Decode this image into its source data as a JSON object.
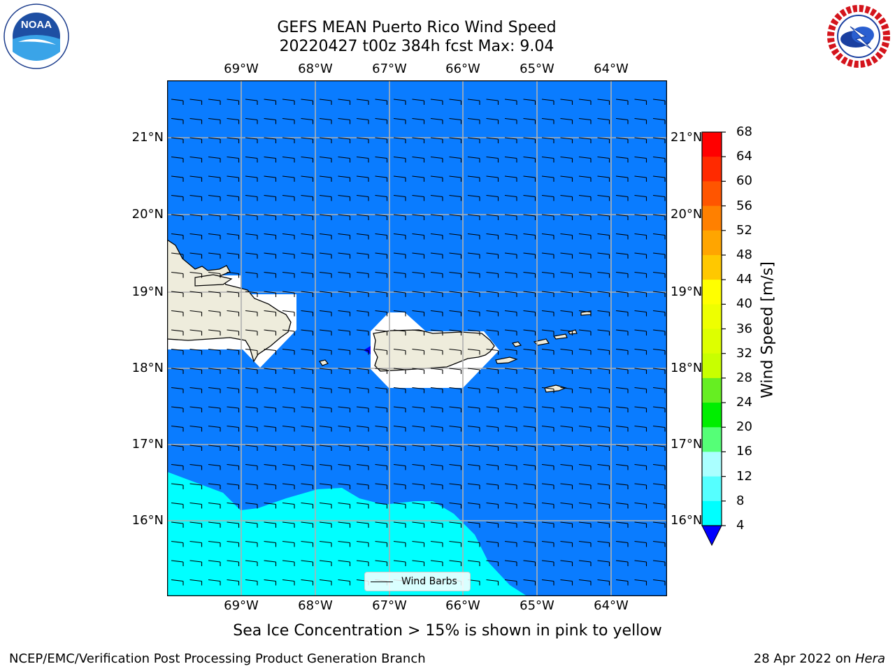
{
  "title": {
    "line1": "GEFS MEAN Puerto Rico Wind Speed",
    "line2": "20220427 t00z 384h fcst   Max: 9.04"
  },
  "map": {
    "lon_labels": [
      "69°W",
      "68°W",
      "67°W",
      "66°W",
      "65°W",
      "64°W"
    ],
    "lat_labels": [
      "21°N",
      "20°N",
      "19°N",
      "18°N",
      "17°N",
      "16°N"
    ],
    "ocean_color": "#0a7cff",
    "high_wind_color": "#00ffff",
    "land_color": "#eeecdc",
    "legend_label": "Wind Barbs"
  },
  "colorbar": {
    "title": "Wind Speed [m/s]",
    "labels": [
      "68",
      "64",
      "60",
      "56",
      "52",
      "48",
      "44",
      "40",
      "36",
      "32",
      "28",
      "24",
      "20",
      "16",
      "12",
      "8",
      "4"
    ],
    "colors": [
      "#ff0000",
      "#ff2a00",
      "#ff5500",
      "#ff8000",
      "#ffa500",
      "#ffc800",
      "#ffff00",
      "#eeff00",
      "#ddff00",
      "#c8ff00",
      "#66ee22",
      "#00ee00",
      "#55ff77",
      "#aaffff",
      "#55ffff",
      "#00ffff",
      "#0a7cff"
    ],
    "underflow_color": "#0000ff"
  },
  "subtitle": "Sea Ice Concentration > 15% is shown in pink to yellow",
  "footer": {
    "left": "NCEP/EMC/Verification Post Processing Product Generation Branch",
    "right_prefix": "28 Apr 2022 on ",
    "right_machine": "Hera"
  },
  "logos": {
    "noaa": "NOAA",
    "nws_text": "NATIONAL WEATHER SERVICE"
  }
}
